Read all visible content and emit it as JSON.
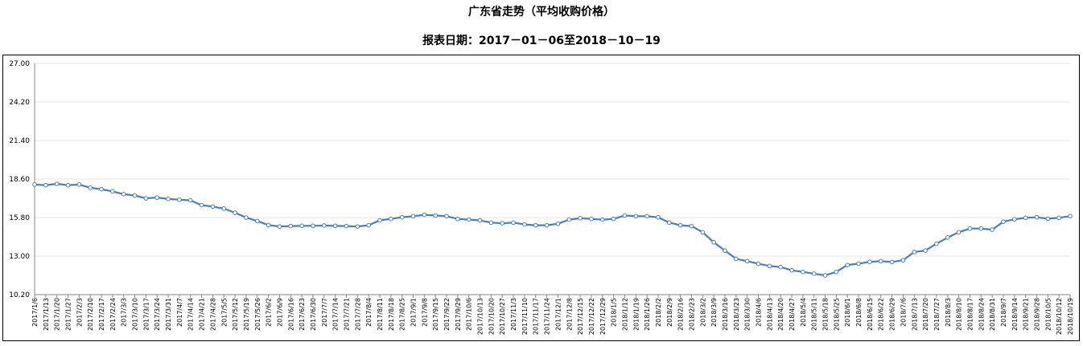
{
  "title": "广东省走势（平均收购价格）",
  "subtitle": "报表日期：2017－01－06至2018－10－19",
  "chart_data": {
    "type": "line",
    "title": "广东省走势（平均收购价格）",
    "subtitle": "报表日期：2017－01－06至2018－10－19",
    "xlabel": "",
    "ylabel": "",
    "ylim": [
      10.2,
      27.0
    ],
    "yticks": [
      "10.20",
      "13.00",
      "15.80",
      "18.60",
      "21.40",
      "24.20",
      "27.00"
    ],
    "grid": true,
    "legend": "none",
    "line_color": "#4a7ebb",
    "categories": [
      "2017/1/6",
      "2017/1/13",
      "2017/1/20",
      "2017/1/27",
      "2017/2/3",
      "2017/2/10",
      "2017/2/17",
      "2017/2/24",
      "2017/3/3",
      "2017/3/10",
      "2017/3/17",
      "2017/3/24",
      "2017/3/31",
      "2017/4/7",
      "2017/4/14",
      "2017/4/21",
      "2017/4/28",
      "2017/5/5",
      "2017/5/12",
      "2017/5/19",
      "2017/5/26",
      "2017/6/2",
      "2017/6/9",
      "2017/6/16",
      "2017/6/23",
      "2017/6/30",
      "2017/7/7",
      "2017/7/14",
      "2017/7/21",
      "2017/7/28",
      "2017/8/4",
      "2017/8/11",
      "2017/8/18",
      "2017/8/25",
      "2017/9/1",
      "2017/9/8",
      "2017/9/15",
      "2017/9/22",
      "2017/9/29",
      "2017/10/6",
      "2017/10/13",
      "2017/10/20",
      "2017/10/27",
      "2017/11/3",
      "2017/11/10",
      "2017/11/17",
      "2017/11/24",
      "2017/12/1",
      "2017/12/8",
      "2017/12/15",
      "2017/12/22",
      "2017/12/29",
      "2018/1/5",
      "2018/1/12",
      "2018/1/19",
      "2018/1/26",
      "2018/2/2",
      "2018/2/9",
      "2018/2/16",
      "2018/2/23",
      "2018/3/2",
      "2018/3/9",
      "2018/3/16",
      "2018/3/23",
      "2018/3/30",
      "2018/4/6",
      "2018/4/13",
      "2018/4/20",
      "2018/4/27",
      "2018/5/4",
      "2018/5/11",
      "2018/5/18",
      "2018/5/25",
      "2018/6/1",
      "2018/6/8",
      "2018/6/15",
      "2018/6/22",
      "2018/6/29",
      "2018/7/6",
      "2018/7/13",
      "2018/7/20",
      "2018/7/27",
      "2018/8/3",
      "2018/8/10",
      "2018/8/17",
      "2018/8/24",
      "2018/8/31",
      "2018/9/7",
      "2018/9/14",
      "2018/9/21",
      "2018/9/28",
      "2018/10/5",
      "2018/10/12",
      "2018/10/19"
    ],
    "values": [
      18.2,
      18.15,
      18.25,
      18.15,
      18.2,
      17.97,
      17.86,
      17.7,
      17.5,
      17.4,
      17.2,
      17.25,
      17.15,
      17.1,
      17.05,
      16.7,
      16.6,
      16.45,
      16.15,
      15.8,
      15.55,
      15.25,
      15.15,
      15.18,
      15.2,
      15.2,
      15.22,
      15.2,
      15.18,
      15.15,
      15.24,
      15.6,
      15.7,
      15.82,
      15.9,
      16.0,
      15.95,
      15.9,
      15.7,
      15.65,
      15.6,
      15.43,
      15.38,
      15.43,
      15.3,
      15.24,
      15.24,
      15.35,
      15.65,
      15.75,
      15.7,
      15.65,
      15.7,
      15.95,
      15.9,
      15.9,
      15.82,
      15.43,
      15.24,
      15.18,
      14.73,
      14.0,
      13.4,
      12.8,
      12.63,
      12.44,
      12.28,
      12.2,
      11.97,
      11.85,
      11.72,
      11.6,
      11.85,
      12.35,
      12.45,
      12.58,
      12.63,
      12.57,
      12.7,
      13.3,
      13.4,
      13.9,
      14.35,
      14.73,
      15.0,
      15.0,
      14.92,
      15.5,
      15.67,
      15.78,
      15.82,
      15.72,
      15.78,
      15.9
    ]
  }
}
